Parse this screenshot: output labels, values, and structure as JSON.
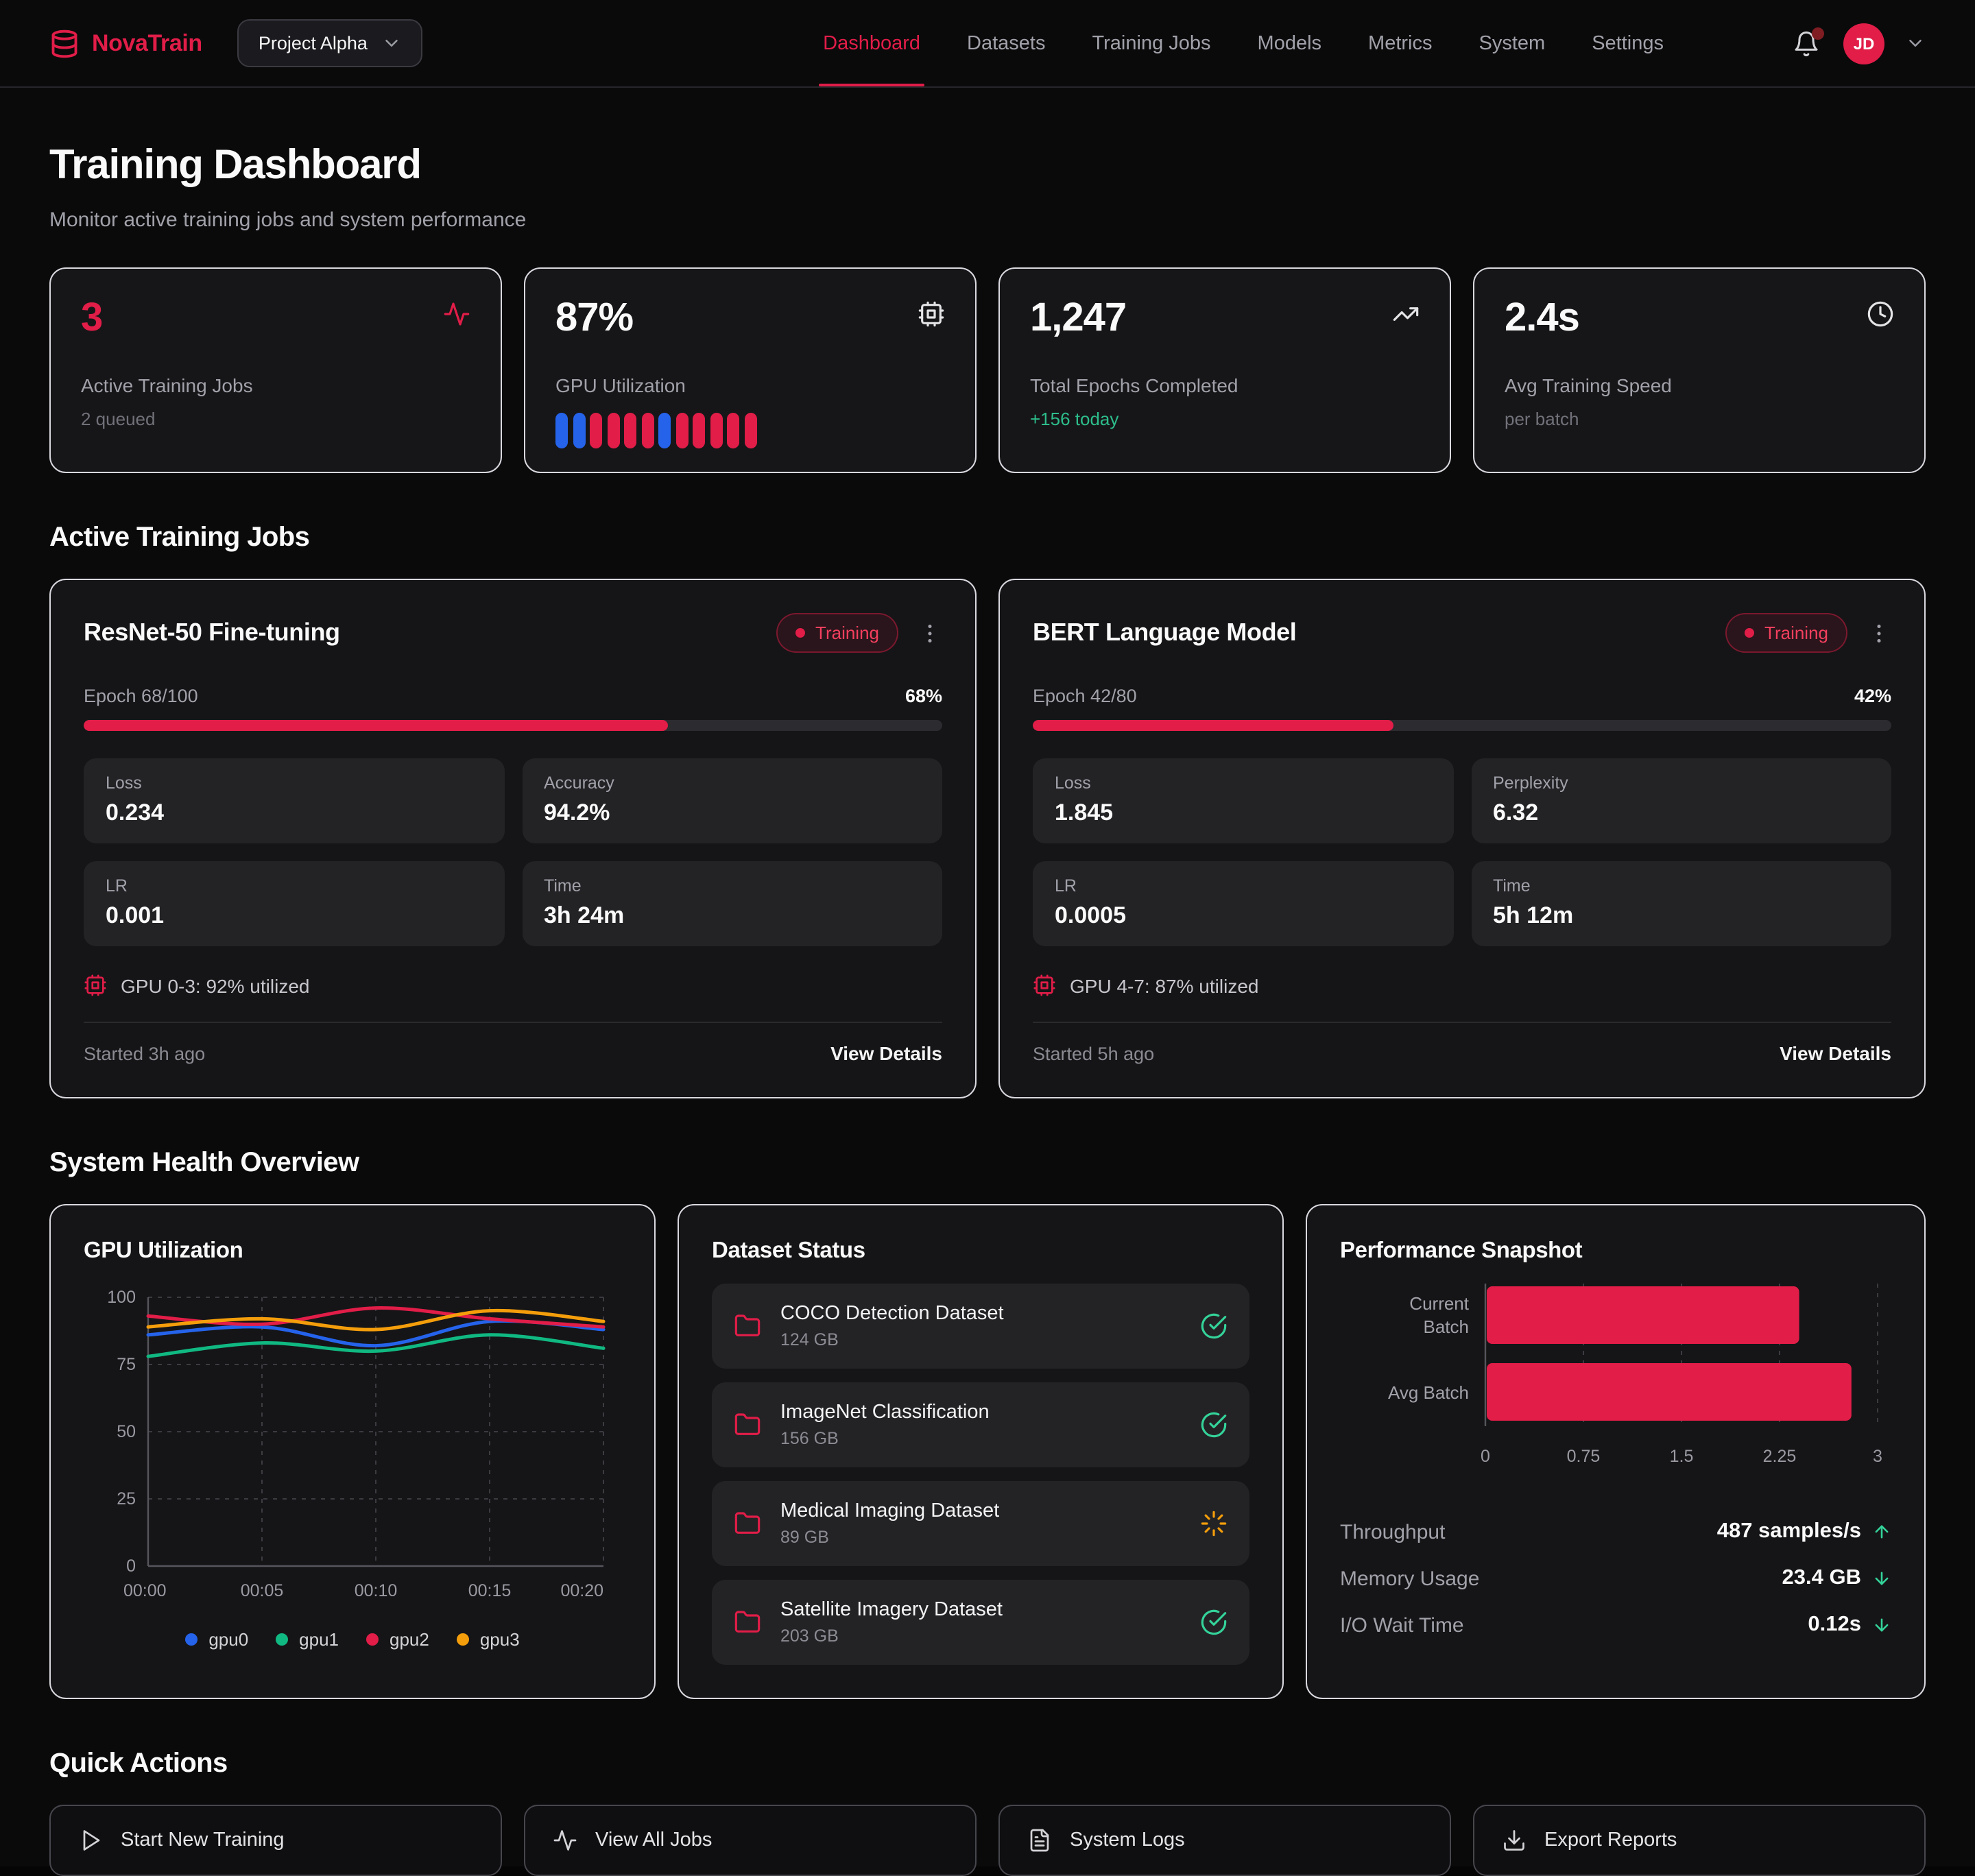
{
  "brand": {
    "name": "NovaTrain",
    "project": "Project Alpha"
  },
  "nav": {
    "items": [
      {
        "label": "Dashboard",
        "active": true
      },
      {
        "label": "Datasets",
        "active": false
      },
      {
        "label": "Training Jobs",
        "active": false
      },
      {
        "label": "Models",
        "active": false
      },
      {
        "label": "Metrics",
        "active": false
      },
      {
        "label": "System",
        "active": false
      },
      {
        "label": "Settings",
        "active": false
      }
    ]
  },
  "user": {
    "initials": "JD"
  },
  "page": {
    "title": "Training Dashboard",
    "subtitle": "Monitor active training jobs and system performance"
  },
  "sections": {
    "jobs": "Active Training Jobs",
    "health": "System Health Overview",
    "actions": "Quick Actions"
  },
  "colors": {
    "accent": "#e11d48",
    "blue": "#2563eb",
    "green": "#10b981",
    "orange": "#f59e0b"
  },
  "stats": [
    {
      "value": "3",
      "label": "Active Training Jobs",
      "sub": "2 queued",
      "icon": "activity",
      "accent": true
    },
    {
      "value": "87%",
      "label": "GPU Utilization",
      "icon": "cpu",
      "bars": [
        "blue",
        "blue",
        "red",
        "red",
        "red",
        "red",
        "blue",
        "red",
        "red",
        "red",
        "red",
        "red"
      ]
    },
    {
      "value": "1,247",
      "label": "Total Epochs Completed",
      "sub": "+156 today",
      "sub_color": "green",
      "icon": "trending-up"
    },
    {
      "value": "2.4s",
      "label": "Avg Training Speed",
      "sub": "per batch",
      "icon": "clock"
    }
  ],
  "jobs": [
    {
      "title": "ResNet-50 Fine-tuning",
      "status": "Training",
      "epoch_label": "Epoch 68/100",
      "percent": "68%",
      "progress": 68,
      "metrics": [
        {
          "label": "Loss",
          "value": "0.234"
        },
        {
          "label": "Accuracy",
          "value": "94.2%"
        },
        {
          "label": "LR",
          "value": "0.001"
        },
        {
          "label": "Time",
          "value": "3h 24m"
        }
      ],
      "gpu_note": "GPU 0-3: 92% utilized",
      "started": "Started 3h ago",
      "details_label": "View Details"
    },
    {
      "title": "BERT Language Model",
      "status": "Training",
      "epoch_label": "Epoch 42/80",
      "percent": "42%",
      "progress": 42,
      "metrics": [
        {
          "label": "Loss",
          "value": "1.845"
        },
        {
          "label": "Perplexity",
          "value": "6.32"
        },
        {
          "label": "LR",
          "value": "0.0005"
        },
        {
          "label": "Time",
          "value": "5h 12m"
        }
      ],
      "gpu_note": "GPU 4-7: 87% utilized",
      "started": "Started 5h ago",
      "details_label": "View Details"
    }
  ],
  "health": {
    "datasets": {
      "title": "Dataset Status",
      "items": [
        {
          "name": "COCO Detection Dataset",
          "size": "124 GB",
          "status": "ready"
        },
        {
          "name": "ImageNet Classification",
          "size": "156 GB",
          "status": "ready"
        },
        {
          "name": "Medical Imaging Dataset",
          "size": "89 GB",
          "status": "syncing"
        },
        {
          "name": "Satellite Imagery Dataset",
          "size": "203 GB",
          "status": "ready"
        }
      ]
    },
    "performance": {
      "metrics": [
        {
          "label": "Throughput",
          "value": "487 samples/s",
          "trend": "up"
        },
        {
          "label": "Memory Usage",
          "value": "23.4 GB",
          "trend": "down"
        },
        {
          "label": "I/O Wait Time",
          "value": "0.12s",
          "trend": "down"
        }
      ]
    }
  },
  "chart_data": [
    {
      "id": "gpu_utilization",
      "type": "line",
      "title": "GPU Utilization",
      "x": [
        "00:00",
        "00:05",
        "00:10",
        "00:15",
        "00:20"
      ],
      "series": [
        {
          "name": "gpu0",
          "color": "#2563eb",
          "values": [
            86,
            89,
            82,
            91,
            88
          ]
        },
        {
          "name": "gpu1",
          "color": "#10b981",
          "values": [
            78,
            83,
            80,
            86,
            81
          ]
        },
        {
          "name": "gpu2",
          "color": "#e11d48",
          "values": [
            93,
            90,
            96,
            92,
            89
          ]
        },
        {
          "name": "gpu3",
          "color": "#f59e0b",
          "values": [
            89,
            92,
            88,
            95,
            91
          ]
        }
      ],
      "ylim": [
        0,
        100
      ],
      "yticks": [
        0,
        25,
        50,
        75,
        100
      ],
      "grid": "dashed",
      "legend_position": "bottom"
    },
    {
      "id": "performance_snapshot",
      "type": "bar",
      "title": "Performance Snapshot",
      "orientation": "horizontal",
      "categories": [
        "Current Batch",
        "Avg Batch"
      ],
      "values": [
        2.4,
        2.8
      ],
      "xlim": [
        0,
        3
      ],
      "xticks": [
        0,
        0.75,
        1.5,
        2.25,
        3
      ],
      "bar_color": "#e11d48",
      "grid": "dashed"
    }
  ],
  "actions": [
    {
      "label": "Start New Training",
      "icon": "play"
    },
    {
      "label": "View All Jobs",
      "icon": "activity"
    },
    {
      "label": "System Logs",
      "icon": "file-text"
    },
    {
      "label": "Export Reports",
      "icon": "download"
    }
  ]
}
